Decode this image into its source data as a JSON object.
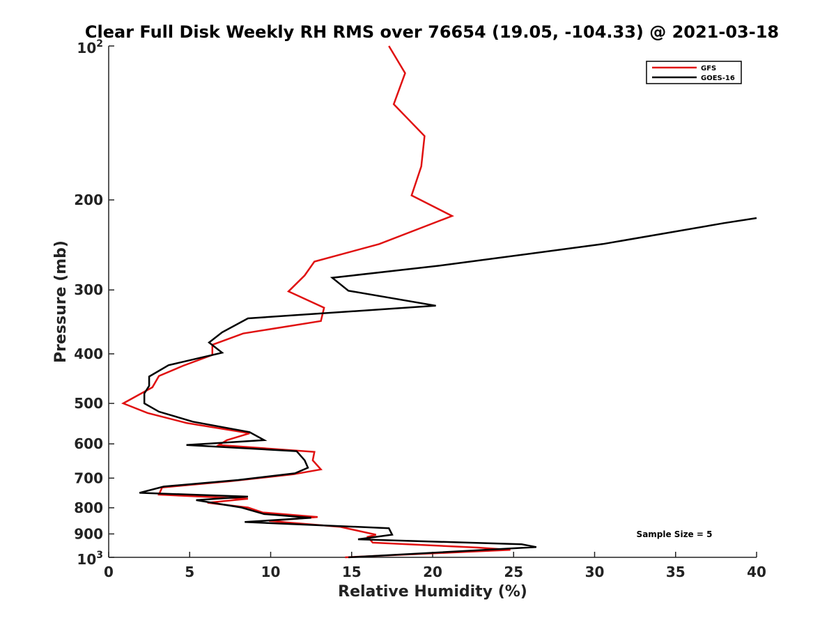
{
  "chart_data": {
    "type": "line",
    "title": "Clear Full Disk Weekly RH RMS over 76654 (19.05, -104.33) @ 2021-03-18",
    "xlabel": "Relative Humidity (%)",
    "ylabel": "Pressure (mb)",
    "xlim": [
      0,
      40
    ],
    "ylim": [
      100,
      1000
    ],
    "yscale": "log",
    "y_reversed": true,
    "grid": false,
    "legend_position": "top-right",
    "x_ticks": [
      0,
      5,
      10,
      15,
      20,
      25,
      30,
      35,
      40
    ],
    "x_tick_labels": [
      "0",
      "5",
      "10",
      "15",
      "20",
      "25",
      "30",
      "35",
      "40"
    ],
    "y_ticks": [
      200,
      300,
      400,
      500,
      600,
      700,
      800,
      900
    ],
    "y_tick_labels": [
      "200",
      "300",
      "400",
      "500",
      "600",
      "700",
      "800",
      "900"
    ],
    "y_top_label": {
      "base": "10",
      "exp": "2"
    },
    "y_bottom_label": {
      "base": "10",
      "exp": "3"
    },
    "annotation": "Sample Size = 5",
    "series": [
      {
        "name": "GFS",
        "color": "#e01010",
        "points": [
          [
            17.3,
            100
          ],
          [
            18.3,
            113
          ],
          [
            17.6,
            130
          ],
          [
            19.5,
            150
          ],
          [
            19.3,
            172
          ],
          [
            18.7,
            196
          ],
          [
            21.2,
            215
          ],
          [
            16.7,
            244
          ],
          [
            12.7,
            264
          ],
          [
            12.1,
            281
          ],
          [
            11.1,
            302
          ],
          [
            13.3,
            325
          ],
          [
            13.1,
            345
          ],
          [
            8.3,
            365
          ],
          [
            6.4,
            384
          ],
          [
            6.4,
            402
          ],
          [
            4.6,
            422
          ],
          [
            3.1,
            442
          ],
          [
            2.7,
            465
          ],
          [
            0.9,
            500
          ],
          [
            2.4,
            522
          ],
          [
            4.8,
            546
          ],
          [
            8.7,
            572
          ],
          [
            7.3,
            590
          ],
          [
            6.8,
            603
          ],
          [
            12.7,
            622
          ],
          [
            12.6,
            646
          ],
          [
            13.1,
            673
          ],
          [
            11.4,
            688
          ],
          [
            7.5,
            710
          ],
          [
            3.3,
            730
          ],
          [
            3.1,
            754
          ],
          [
            8.6,
            768
          ],
          [
            6.1,
            782
          ],
          [
            8.6,
            799
          ],
          [
            9.5,
            817
          ],
          [
            12.9,
            834
          ],
          [
            9.9,
            849
          ],
          [
            14.3,
            872
          ],
          [
            16.5,
            903
          ],
          [
            16.0,
            912
          ],
          [
            16.3,
            936
          ],
          [
            22.8,
            957
          ],
          [
            24.8,
            967
          ],
          [
            14.6,
            1000
          ]
        ]
      },
      {
        "name": "GOES-16",
        "color": "#000000",
        "points": [
          [
            40.0,
            217
          ],
          [
            38.0,
            222
          ],
          [
            30.5,
            244
          ],
          [
            20.4,
            269
          ],
          [
            13.8,
            284
          ],
          [
            14.8,
            301
          ],
          [
            20.2,
            322
          ],
          [
            8.6,
            341
          ],
          [
            7.0,
            363
          ],
          [
            6.2,
            380
          ],
          [
            7.0,
            398
          ],
          [
            3.7,
            421
          ],
          [
            2.5,
            443
          ],
          [
            2.5,
            462
          ],
          [
            2.2,
            478
          ],
          [
            2.2,
            500
          ],
          [
            3.1,
            519
          ],
          [
            5.2,
            543
          ],
          [
            8.7,
            569
          ],
          [
            9.6,
            590
          ],
          [
            4.8,
            603
          ],
          [
            11.6,
            620
          ],
          [
            12.1,
            646
          ],
          [
            12.3,
            668
          ],
          [
            11.5,
            685
          ],
          [
            8.0,
            706
          ],
          [
            3.4,
            727
          ],
          [
            1.9,
            748
          ],
          [
            8.6,
            761
          ],
          [
            5.4,
            773
          ],
          [
            8.2,
            799
          ],
          [
            9.6,
            823
          ],
          [
            12.5,
            837
          ],
          [
            8.4,
            853
          ],
          [
            17.3,
            877
          ],
          [
            17.5,
            903
          ],
          [
            15.4,
            922
          ],
          [
            25.5,
            943
          ],
          [
            26.4,
            955
          ],
          [
            14.8,
            1000
          ]
        ]
      }
    ]
  }
}
